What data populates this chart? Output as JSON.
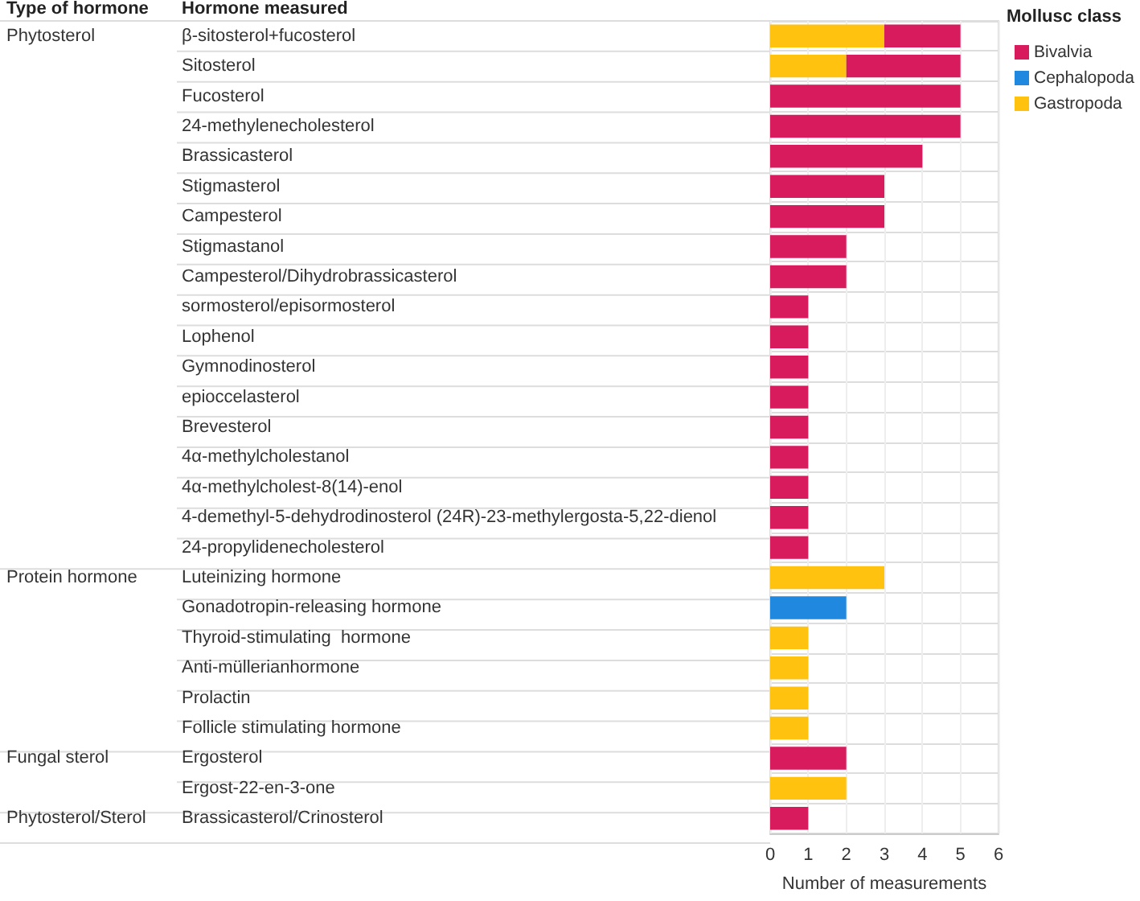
{
  "chart_data": {
    "type": "bar",
    "orientation": "horizontal",
    "stacked": true,
    "xlabel": "Number of measurements",
    "ylabel": "Hormone measured",
    "legend_title": "Mollusc class",
    "categories": [
      "β-sitosterol+fucosterol",
      "Sitosterol",
      "Fucosterol",
      "24-methylenecholesterol",
      "Brassicasterol",
      "Stigmasterol",
      "Campesterol",
      "Stigmastanol",
      "Campesterol/Dihydrobrassicasterol",
      "sormosterol/episormosterol",
      "Lophenol",
      "Gymnodinosterol",
      "epioccelasterol",
      "Brevesterol",
      "4α-methylcholestanol",
      "4α-methylcholest-8(14)-enol",
      "4-demethyl-5-dehydrodinosterol (24R)-23-methylergosta-5,22-dienol",
      "24-propylidenecholesterol",
      "Luteinizing hormone",
      "Gonadotropin-releasing hormone",
      "Thyroid-stimulating  hormone",
      "Anti-müllerianhormone",
      "Prolactin",
      "Follicle stimulating hormone",
      "Ergosterol",
      "Ergost-22-en-3-one",
      "Brassicasterol/Crinosterol"
    ],
    "series": [
      {
        "name": "Gastropoda",
        "color": "#ffc20e",
        "values": [
          3,
          2,
          null,
          null,
          null,
          null,
          null,
          null,
          null,
          null,
          null,
          null,
          null,
          null,
          null,
          null,
          null,
          null,
          3,
          null,
          1,
          1,
          1,
          1,
          null,
          2,
          null
        ]
      },
      {
        "name": "Cephalopoda",
        "color": "#2188e0",
        "values": [
          null,
          null,
          null,
          null,
          null,
          null,
          null,
          null,
          null,
          null,
          null,
          null,
          null,
          null,
          null,
          null,
          null,
          null,
          null,
          2,
          null,
          null,
          null,
          null,
          null,
          null,
          null
        ]
      },
      {
        "name": "Bivalvia",
        "color": "#d81b5d",
        "values": [
          2,
          3,
          5,
          5,
          4,
          3,
          3,
          2,
          2,
          1,
          1,
          1,
          1,
          1,
          1,
          1,
          1,
          1,
          null,
          null,
          null,
          null,
          null,
          null,
          2,
          null,
          1
        ]
      }
    ],
    "xlim": [
      0,
      6
    ],
    "xticks": [
      0,
      1,
      2,
      3,
      4,
      5,
      6
    ],
    "grid": "x",
    "legend": "top right",
    "y2_categories": [
      "Phytosterol",
      null,
      null,
      null,
      null,
      null,
      null,
      null,
      null,
      null,
      null,
      null,
      null,
      null,
      null,
      null,
      null,
      null,
      "Protein hormone",
      null,
      null,
      null,
      null,
      null,
      "Fungal sterol",
      null,
      "Phytosterol/Sterol"
    ],
    "annotations": [
      "Type of hormone"
    ]
  }
}
